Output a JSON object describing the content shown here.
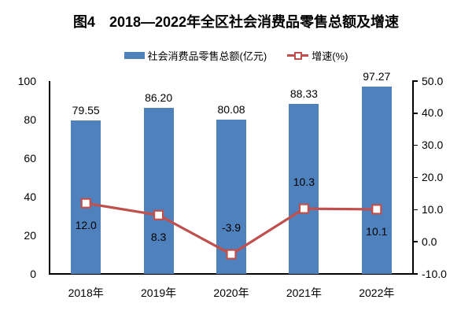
{
  "chart_data": {
    "type": "bar+line combo",
    "title": "图4　2018—2022年全区社会消费品零售总额及增速",
    "categories": [
      "2018年",
      "2019年",
      "2020年",
      "2021年",
      "2022年"
    ],
    "series": [
      {
        "name": "社会消费品零售总额(亿元)",
        "type": "bar",
        "axis": "left",
        "color": "#4F81BD",
        "values": [
          79.55,
          86.2,
          80.08,
          88.33,
          97.27
        ],
        "data_labels": [
          "79.55",
          "86.20",
          "80.08",
          "88.33",
          "97.27"
        ]
      },
      {
        "name": "增速(%)",
        "type": "line",
        "axis": "right",
        "color": "#C0504D",
        "marker": "open-square",
        "values": [
          12.0,
          8.3,
          -3.9,
          10.3,
          10.1
        ],
        "data_labels": [
          "12.0",
          "8.3",
          "-3.9",
          "10.3",
          "10.1"
        ],
        "label_placement": [
          "below",
          "below",
          "above",
          "above",
          "below"
        ]
      }
    ],
    "left_axis": {
      "min": 0,
      "max": 100,
      "tick_labels": [
        "100",
        "80",
        "60",
        "40",
        "20",
        "0"
      ]
    },
    "right_axis": {
      "min": -10,
      "max": 50,
      "tick_labels": [
        "50.0",
        "40.0",
        "30.0",
        "20.0",
        "10.0",
        "0.0",
        "-10.0"
      ]
    },
    "grid": false,
    "legend_position": "top",
    "colors": {
      "bar": "#4F81BD",
      "line": "#C0504D",
      "marker_fill": "#FFFFFF",
      "axis": "#000000",
      "text": "#000000"
    }
  }
}
